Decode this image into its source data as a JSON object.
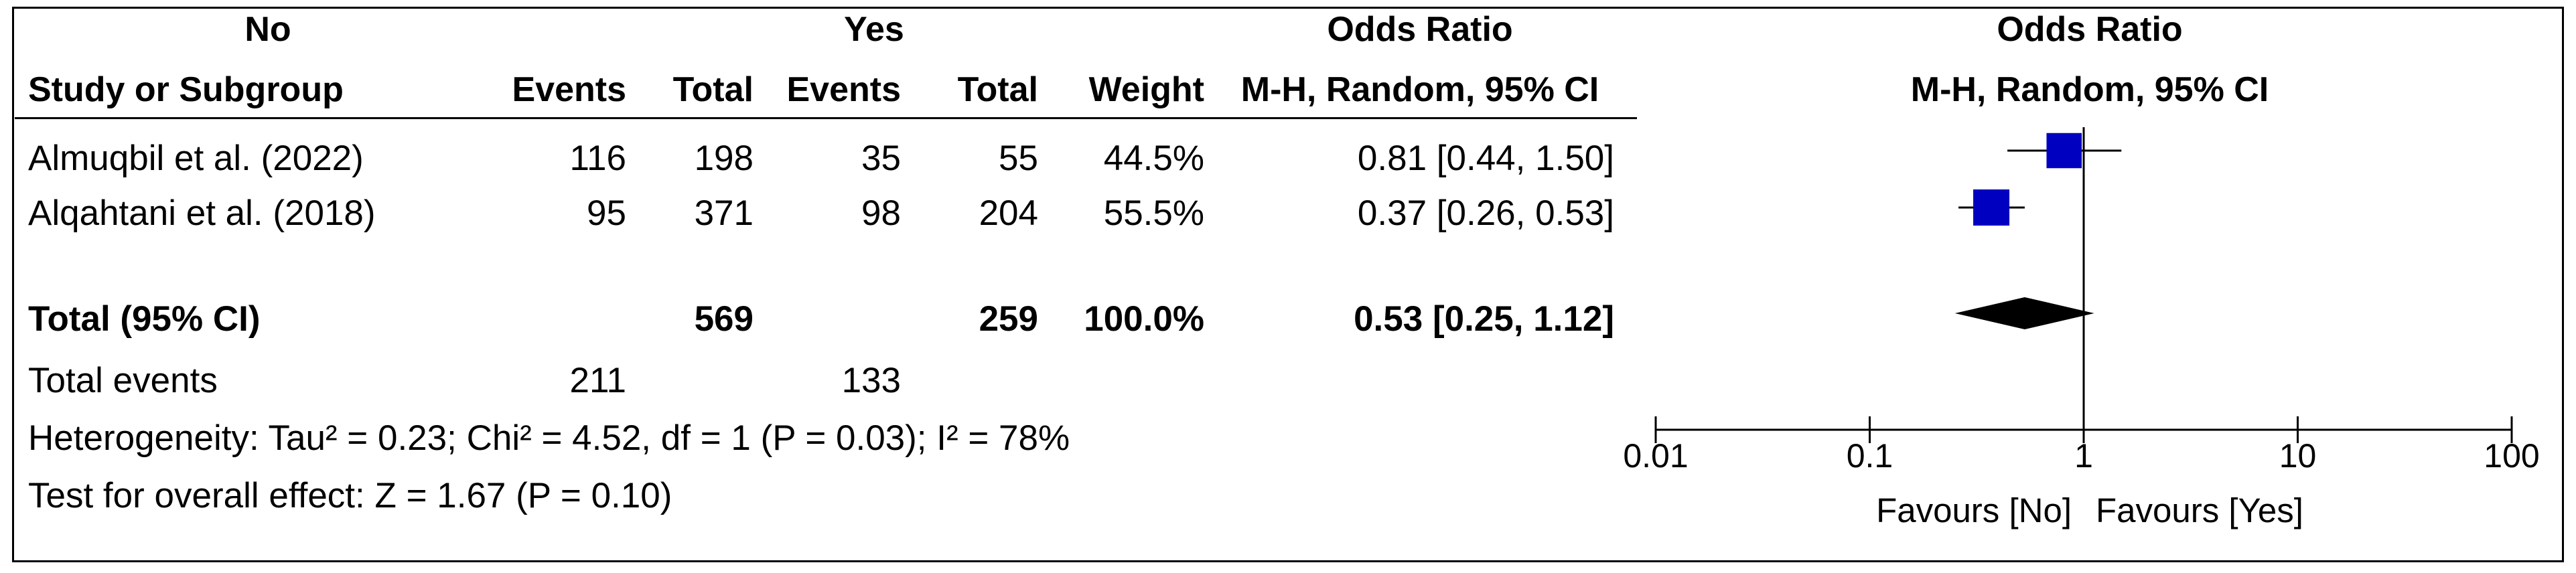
{
  "header": {
    "group1": "No",
    "group2": "Yes",
    "col_study": "Study or Subgroup",
    "col_events1": "Events",
    "col_total1": "Total",
    "col_events2": "Events",
    "col_total2": "Total",
    "col_weight": "Weight",
    "col_or_title": "Odds Ratio",
    "col_or_method": "M-H, Random, 95% CI",
    "plot_title": "Odds Ratio",
    "plot_method": "M-H, Random, 95% CI"
  },
  "studies": [
    {
      "name": "Almuqbil et al. (2022)",
      "events1": "116",
      "total1": "198",
      "events2": "35",
      "total2": "55",
      "weight": "44.5%",
      "ci_text": "0.81 [0.44, 1.50]"
    },
    {
      "name": "Alqahtani et al. (2018)",
      "events1": "95",
      "total1": "371",
      "events2": "98",
      "total2": "204",
      "weight": "55.5%",
      "ci_text": "0.37 [0.26, 0.53]"
    }
  ],
  "total": {
    "label": "Total (95% CI)",
    "total1": "569",
    "total2": "259",
    "weight": "100.0%",
    "ci_text": "0.53 [0.25, 1.12]"
  },
  "total_events": {
    "label": "Total events",
    "events1": "211",
    "events2": "133"
  },
  "heterogeneity": "Heterogeneity: Tau² = 0.23; Chi² = 4.52, df = 1 (P = 0.03); I² = 78%",
  "overall_effect": "Test for overall effect: Z = 1.67 (P = 0.10)",
  "axis": {
    "ticks": [
      0.01,
      0.1,
      1,
      10,
      100
    ],
    "tick_labels": [
      "0.01",
      "0.1",
      "1",
      "10",
      "100"
    ],
    "favours_left": "Favours [No]",
    "favours_right": "Favours [Yes]"
  },
  "colors": {
    "marker": "#0000c0",
    "diamond": "#000000",
    "line": "#000000"
  },
  "chart_data": {
    "type": "forest",
    "scale": "log",
    "xlim": [
      0.01,
      100
    ],
    "reference_line": 1,
    "studies": [
      {
        "name": "Almuqbil et al. (2022)",
        "or": 0.81,
        "lower": 0.44,
        "upper": 1.5,
        "weight": 44.5
      },
      {
        "name": "Alqahtani et al. (2018)",
        "or": 0.37,
        "lower": 0.26,
        "upper": 0.53,
        "weight": 55.5
      }
    ],
    "pooled": {
      "name": "Total (95% CI)",
      "or": 0.53,
      "lower": 0.25,
      "upper": 1.12
    }
  }
}
